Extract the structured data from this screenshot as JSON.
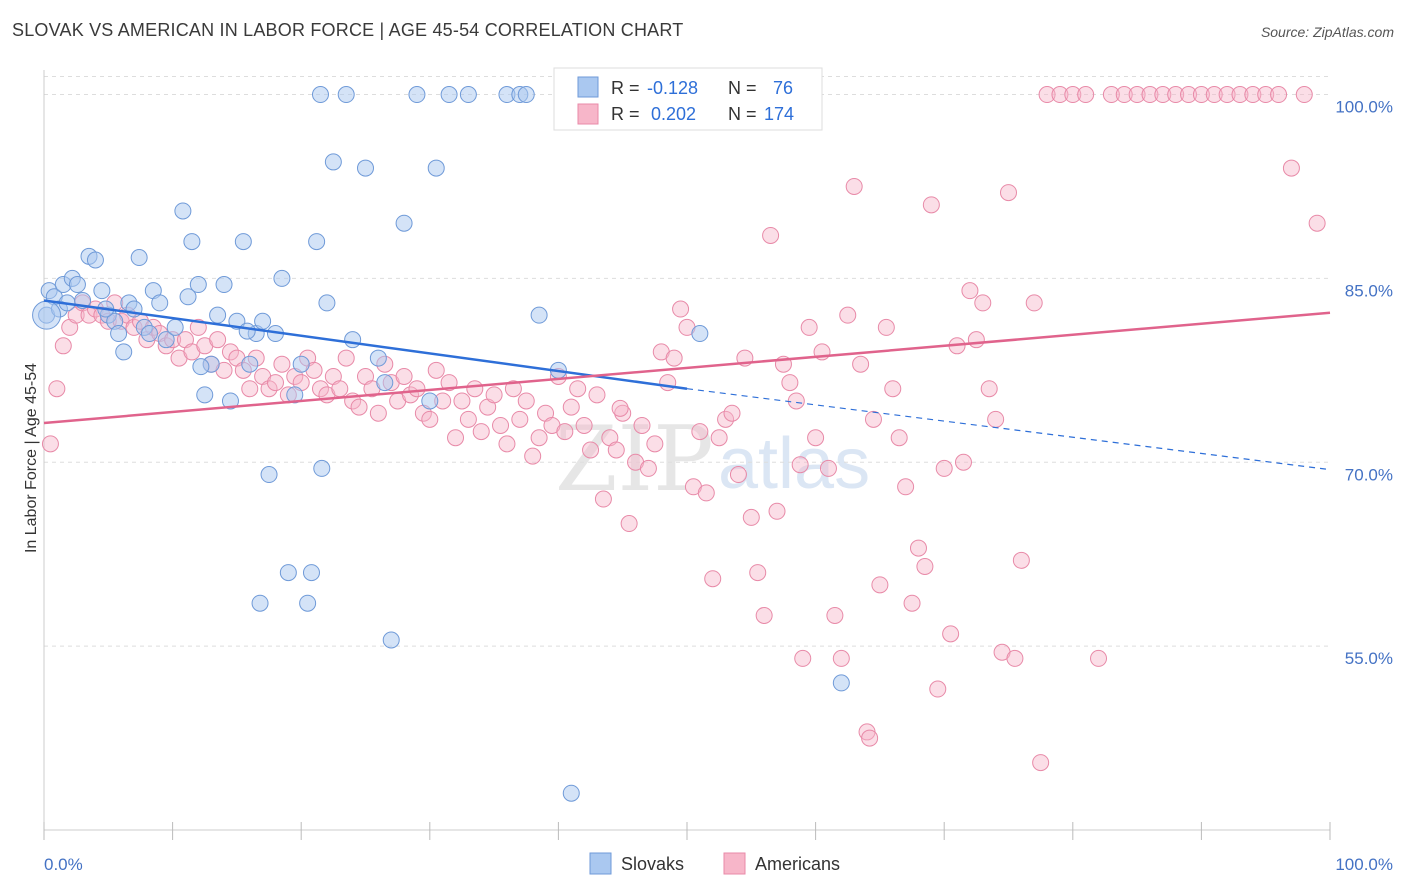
{
  "header": {
    "title": "SLOVAK VS AMERICAN IN LABOR FORCE | AGE 45-54 CORRELATION CHART",
    "source": "Source: ZipAtlas.com"
  },
  "watermark": {
    "zip": "ZIP",
    "atlas": "atlas"
  },
  "legend_box": {
    "rows": [
      {
        "r_label": "R =",
        "r_value": "-0.128",
        "n_label": "N =",
        "n_value": "76"
      },
      {
        "r_label": "R =",
        "r_value": "0.202",
        "n_label": "N =",
        "n_value": "174"
      }
    ]
  },
  "bottom_legend": {
    "series1": "Slovaks",
    "series2": "Americans"
  },
  "colors": {
    "slovak_fill": "#aac8f0",
    "slovak_stroke": "#6f9ad8",
    "slovak_line": "#2e6fd8",
    "american_fill": "#f7b6c9",
    "american_stroke": "#e88aa8",
    "american_line": "#e0638c",
    "grid": "#dddddd",
    "tick_text": "#4472c4"
  },
  "chart_data": {
    "type": "scatter",
    "title": "SLOVAK VS AMERICAN IN LABOR FORCE | AGE 45-54 CORRELATION CHART",
    "xlabel": "",
    "ylabel": "In Labor Force | Age 45-54",
    "xlim": [
      0,
      100
    ],
    "ylim": [
      40,
      102
    ],
    "x_tick_labels": [
      "0.0%",
      "100.0%"
    ],
    "y_ticks": [
      55,
      70,
      85,
      100
    ],
    "y_tick_labels": [
      "55.0%",
      "70.0%",
      "85.0%",
      "100.0%"
    ],
    "grid": true,
    "legend_position": "top-center",
    "series": [
      {
        "name": "Slovaks",
        "r": -0.128,
        "n": 76,
        "trend": {
          "x": [
            0,
            50
          ],
          "y": [
            83.2,
            76.0
          ],
          "dashed_to": [
            100,
            69.4
          ]
        },
        "points": [
          [
            0.2,
            82.0
          ],
          [
            0.4,
            84.0
          ],
          [
            0.8,
            83.5
          ],
          [
            1.2,
            82.5
          ],
          [
            1.5,
            84.5
          ],
          [
            1.8,
            83.0
          ],
          [
            2.2,
            85.0
          ],
          [
            2.6,
            84.5
          ],
          [
            3.0,
            83.2
          ],
          [
            3.5,
            86.8
          ],
          [
            4.0,
            86.5
          ],
          [
            4.5,
            84.0
          ],
          [
            5.0,
            82.0
          ],
          [
            5.5,
            81.5
          ],
          [
            5.8,
            80.5
          ],
          [
            6.2,
            79.0
          ],
          [
            6.6,
            83.0
          ],
          [
            7.0,
            82.5
          ],
          [
            7.4,
            86.7
          ],
          [
            7.8,
            81.0
          ],
          [
            8.2,
            80.5
          ],
          [
            8.5,
            84.0
          ],
          [
            9.0,
            83.0
          ],
          [
            9.5,
            80.0
          ],
          [
            10.2,
            81.0
          ],
          [
            10.8,
            90.5
          ],
          [
            11.2,
            83.5
          ],
          [
            11.5,
            88.0
          ],
          [
            12.0,
            84.5
          ],
          [
            12.5,
            75.5
          ],
          [
            13.0,
            78.0
          ],
          [
            13.5,
            82.0
          ],
          [
            14.0,
            84.5
          ],
          [
            14.5,
            75.0
          ],
          [
            15.0,
            81.5
          ],
          [
            15.5,
            88.0
          ],
          [
            16.0,
            78.0
          ],
          [
            16.5,
            80.5
          ],
          [
            17.0,
            81.5
          ],
          [
            17.5,
            69.0
          ],
          [
            18.0,
            80.5
          ],
          [
            18.5,
            85.0
          ],
          [
            19.0,
            61.0
          ],
          [
            19.5,
            75.5
          ],
          [
            20.0,
            78.0
          ],
          [
            20.5,
            58.5
          ],
          [
            20.8,
            61.0
          ],
          [
            21.2,
            88.0
          ],
          [
            21.6,
            69.5
          ],
          [
            22.0,
            83.0
          ],
          [
            22.5,
            94.5
          ],
          [
            24.0,
            80.0
          ],
          [
            25.0,
            94.0
          ],
          [
            26.5,
            76.5
          ],
          [
            28.0,
            89.5
          ],
          [
            29.0,
            100.0
          ],
          [
            21.5,
            100.0
          ],
          [
            23.5,
            100.0
          ],
          [
            27.0,
            55.5
          ],
          [
            30.0,
            75.0
          ],
          [
            30.5,
            94.0
          ],
          [
            31.5,
            100.0
          ],
          [
            33.0,
            100.0
          ],
          [
            36.0,
            100.0
          ],
          [
            37.0,
            100.0
          ],
          [
            37.5,
            100.0
          ],
          [
            38.5,
            82.0
          ],
          [
            40.0,
            77.5
          ],
          [
            41.0,
            43.0
          ],
          [
            49.0,
            100.0
          ],
          [
            51.0,
            80.5
          ],
          [
            62.0,
            52.0
          ],
          [
            12.2,
            77.8
          ],
          [
            16.8,
            58.5
          ],
          [
            26.0,
            78.5
          ],
          [
            4.8,
            82.5
          ],
          [
            15.8,
            80.7
          ]
        ]
      },
      {
        "name": "Americans",
        "r": 0.202,
        "n": 174,
        "trend": {
          "x": [
            0,
            100
          ],
          "y": [
            73.2,
            82.2
          ]
        },
        "points": [
          [
            0.5,
            71.5
          ],
          [
            1.0,
            76.0
          ],
          [
            1.5,
            79.5
          ],
          [
            2.0,
            81.0
          ],
          [
            2.5,
            82.0
          ],
          [
            3.0,
            83.0
          ],
          [
            3.5,
            82.0
          ],
          [
            4.0,
            82.5
          ],
          [
            4.5,
            82.0
          ],
          [
            5.0,
            81.5
          ],
          [
            5.5,
            83.0
          ],
          [
            6.0,
            81.5
          ],
          [
            6.5,
            82.0
          ],
          [
            7.0,
            81.0
          ],
          [
            7.5,
            81.5
          ],
          [
            8.0,
            80.0
          ],
          [
            8.5,
            81.0
          ],
          [
            9.0,
            80.5
          ],
          [
            9.5,
            79.5
          ],
          [
            10.0,
            80.0
          ],
          [
            10.5,
            78.5
          ],
          [
            11.0,
            80.0
          ],
          [
            11.5,
            79.0
          ],
          [
            12.0,
            81.0
          ],
          [
            12.5,
            79.5
          ],
          [
            13.0,
            78.0
          ],
          [
            13.5,
            80.0
          ],
          [
            14.0,
            77.5
          ],
          [
            14.5,
            79.0
          ],
          [
            15.0,
            78.5
          ],
          [
            15.5,
            77.5
          ],
          [
            16.0,
            76.0
          ],
          [
            16.5,
            78.5
          ],
          [
            17.0,
            77.0
          ],
          [
            17.5,
            76.0
          ],
          [
            18.0,
            76.5
          ],
          [
            18.5,
            78.0
          ],
          [
            19.0,
            75.5
          ],
          [
            19.5,
            77.0
          ],
          [
            20.0,
            76.5
          ],
          [
            20.5,
            78.5
          ],
          [
            21.0,
            77.5
          ],
          [
            21.5,
            76.0
          ],
          [
            22.0,
            75.5
          ],
          [
            22.5,
            77.0
          ],
          [
            23.0,
            76.0
          ],
          [
            23.5,
            78.5
          ],
          [
            24.0,
            75.0
          ],
          [
            24.5,
            74.5
          ],
          [
            25.0,
            77.0
          ],
          [
            25.5,
            76.0
          ],
          [
            26.0,
            74.0
          ],
          [
            26.5,
            78.0
          ],
          [
            27.0,
            76.5
          ],
          [
            27.5,
            75.0
          ],
          [
            28.0,
            77.0
          ],
          [
            28.5,
            75.5
          ],
          [
            29.0,
            76.0
          ],
          [
            29.5,
            74.0
          ],
          [
            30.0,
            73.5
          ],
          [
            30.5,
            77.5
          ],
          [
            31.0,
            75.0
          ],
          [
            31.5,
            76.5
          ],
          [
            32.0,
            72.0
          ],
          [
            32.5,
            75.0
          ],
          [
            33.0,
            73.5
          ],
          [
            33.5,
            76.0
          ],
          [
            34.0,
            72.5
          ],
          [
            34.5,
            74.5
          ],
          [
            35.0,
            75.5
          ],
          [
            35.5,
            73.0
          ],
          [
            36.0,
            71.5
          ],
          [
            36.5,
            76.0
          ],
          [
            37.0,
            73.5
          ],
          [
            37.5,
            75.0
          ],
          [
            38.0,
            70.5
          ],
          [
            38.5,
            72.0
          ],
          [
            39.0,
            74.0
          ],
          [
            39.5,
            73.0
          ],
          [
            40.0,
            77.0
          ],
          [
            40.5,
            72.5
          ],
          [
            41.0,
            74.5
          ],
          [
            41.5,
            76.0
          ],
          [
            42.0,
            73.0
          ],
          [
            42.5,
            71.0
          ],
          [
            43.0,
            75.5
          ],
          [
            43.5,
            67.0
          ],
          [
            44.0,
            72.0
          ],
          [
            44.5,
            71.0
          ],
          [
            45.0,
            74.0
          ],
          [
            45.5,
            65.0
          ],
          [
            46.0,
            70.0
          ],
          [
            46.5,
            73.0
          ],
          [
            47.0,
            69.5
          ],
          [
            47.5,
            71.5
          ],
          [
            48.0,
            79.0
          ],
          [
            48.5,
            76.5
          ],
          [
            49.0,
            78.5
          ],
          [
            49.5,
            82.5
          ],
          [
            50.0,
            81.0
          ],
          [
            50.5,
            68.0
          ],
          [
            51.0,
            72.5
          ],
          [
            51.5,
            67.5
          ],
          [
            52.0,
            60.5
          ],
          [
            52.5,
            72.0
          ],
          [
            53.0,
            73.5
          ],
          [
            53.5,
            74.0
          ],
          [
            54.0,
            69.0
          ],
          [
            54.5,
            78.5
          ],
          [
            55.0,
            65.5
          ],
          [
            55.5,
            61.0
          ],
          [
            56.0,
            57.5
          ],
          [
            56.5,
            88.5
          ],
          [
            57.0,
            66.0
          ],
          [
            57.5,
            78.0
          ],
          [
            58.0,
            76.5
          ],
          [
            58.5,
            75.0
          ],
          [
            59.0,
            54.0
          ],
          [
            59.5,
            81.0
          ],
          [
            60.0,
            72.0
          ],
          [
            60.5,
            79.0
          ],
          [
            61.0,
            69.5
          ],
          [
            61.5,
            57.5
          ],
          [
            62.0,
            54.0
          ],
          [
            62.5,
            82.0
          ],
          [
            63.0,
            92.5
          ],
          [
            63.5,
            78.0
          ],
          [
            64.0,
            48.0
          ],
          [
            64.5,
            73.5
          ],
          [
            65.0,
            60.0
          ],
          [
            65.5,
            81.0
          ],
          [
            66.0,
            76.0
          ],
          [
            66.5,
            72.0
          ],
          [
            67.0,
            68.0
          ],
          [
            67.5,
            58.5
          ],
          [
            68.0,
            63.0
          ],
          [
            68.5,
            61.5
          ],
          [
            69.0,
            91.0
          ],
          [
            69.5,
            51.5
          ],
          [
            70.0,
            69.5
          ],
          [
            70.5,
            56.0
          ],
          [
            71.0,
            79.5
          ],
          [
            71.5,
            70.0
          ],
          [
            72.0,
            84.0
          ],
          [
            72.5,
            80.0
          ],
          [
            73.0,
            83.0
          ],
          [
            73.5,
            76.0
          ],
          [
            74.0,
            73.5
          ],
          [
            74.5,
            54.5
          ],
          [
            75.0,
            92.0
          ],
          [
            75.5,
            54.0
          ],
          [
            76.0,
            62.0
          ],
          [
            77.0,
            83.0
          ],
          [
            78.0,
            100.0
          ],
          [
            79.0,
            100.0
          ],
          [
            80.0,
            100.0
          ],
          [
            81.0,
            100.0
          ],
          [
            82.0,
            54.0
          ],
          [
            83.0,
            100.0
          ],
          [
            84.0,
            100.0
          ],
          [
            85.0,
            100.0
          ],
          [
            86.0,
            100.0
          ],
          [
            87.0,
            100.0
          ],
          [
            88.0,
            100.0
          ],
          [
            89.0,
            100.0
          ],
          [
            90.0,
            100.0
          ],
          [
            91.0,
            100.0
          ],
          [
            92.0,
            100.0
          ],
          [
            93.0,
            100.0
          ],
          [
            94.0,
            100.0
          ],
          [
            95.0,
            100.0
          ],
          [
            96.0,
            100.0
          ],
          [
            97.0,
            94.0
          ],
          [
            98.0,
            100.0
          ],
          [
            99.0,
            89.5
          ],
          [
            77.5,
            45.5
          ],
          [
            64.2,
            47.5
          ],
          [
            58.8,
            69.8
          ],
          [
            44.8,
            74.4
          ]
        ]
      }
    ]
  }
}
